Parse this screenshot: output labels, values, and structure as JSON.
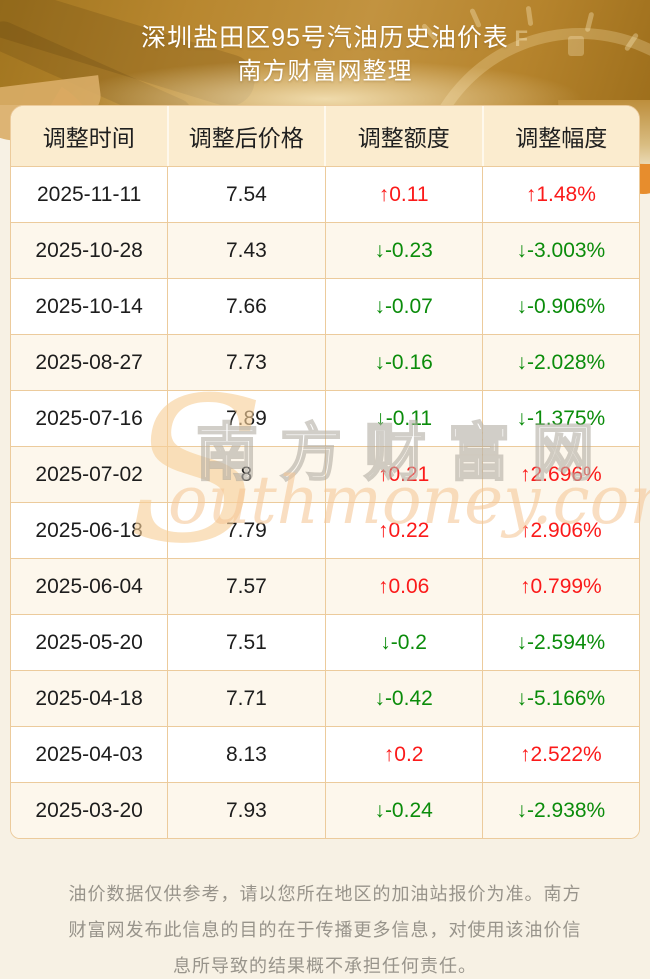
{
  "header": {
    "title": "深圳盐田区95号汽油历史油价表",
    "subtitle": "南方财富网整理",
    "gauge_label": "F"
  },
  "table": {
    "columns": [
      "调整时间",
      "调整后价格",
      "调整额度",
      "调整幅度"
    ],
    "rows": [
      {
        "date": "2025-11-11",
        "price": "7.54",
        "change": "↑0.11",
        "pct": "↑1.48%",
        "direction": "up"
      },
      {
        "date": "2025-10-28",
        "price": "7.43",
        "change": "↓-0.23",
        "pct": "↓-3.003%",
        "direction": "down"
      },
      {
        "date": "2025-10-14",
        "price": "7.66",
        "change": "↓-0.07",
        "pct": "↓-0.906%",
        "direction": "down"
      },
      {
        "date": "2025-08-27",
        "price": "7.73",
        "change": "↓-0.16",
        "pct": "↓-2.028%",
        "direction": "down"
      },
      {
        "date": "2025-07-16",
        "price": "7.89",
        "change": "↓-0.11",
        "pct": "↓-1.375%",
        "direction": "down"
      },
      {
        "date": "2025-07-02",
        "price": "8",
        "change": "↑0.21",
        "pct": "↑2.696%",
        "direction": "up"
      },
      {
        "date": "2025-06-18",
        "price": "7.79",
        "change": "↑0.22",
        "pct": "↑2.906%",
        "direction": "up"
      },
      {
        "date": "2025-06-04",
        "price": "7.57",
        "change": "↑0.06",
        "pct": "↑0.799%",
        "direction": "up"
      },
      {
        "date": "2025-05-20",
        "price": "7.51",
        "change": "↓-0.2",
        "pct": "↓-2.594%",
        "direction": "down"
      },
      {
        "date": "2025-04-18",
        "price": "7.71",
        "change": "↓-0.42",
        "pct": "↓-5.166%",
        "direction": "down"
      },
      {
        "date": "2025-04-03",
        "price": "8.13",
        "change": "↑0.2",
        "pct": "↑2.522%",
        "direction": "up"
      },
      {
        "date": "2025-03-20",
        "price": "7.93",
        "change": "↓-0.24",
        "pct": "↓-2.938%",
        "direction": "down"
      }
    ]
  },
  "watermark": {
    "initial": "S",
    "cn": "南方财富网",
    "en": "outhmoney.com"
  },
  "footer": {
    "disclaimer": "油价数据仅供参考，请以您所在地区的加油站报价为准。南方财富网发布此信息的目的在于传播更多信息，对使用该油价信息所导致的结果概不承担任何责任。"
  },
  "colors": {
    "up": "#fb1a1a",
    "down": "#0b8c0b",
    "text": "#1d1d1d",
    "banner_gold": "#b8872f",
    "table_border": "#eccb9c",
    "header_row_bg": "#fbeccf",
    "alt_row_bg": "#fdf7ec",
    "page_bg": "#f7f1e4"
  }
}
